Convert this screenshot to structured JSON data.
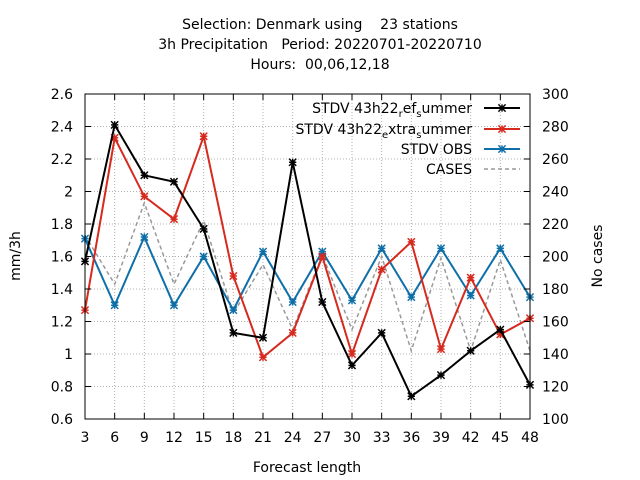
{
  "title_lines": [
    "Selection: Denmark using    23 stations",
    "3h Precipitation   Period: 20220701-20220710",
    "Hours:  00,06,12,18"
  ],
  "colors": {
    "ref": "#000000",
    "extra": "#d62a1e",
    "obs": "#0f6fa8",
    "cases": "#999999"
  },
  "chart_data": {
    "type": "line",
    "xlabel": "Forecast length",
    "ylabel": "mm/3h",
    "y2label": "No cases",
    "x": [
      3,
      6,
      9,
      12,
      15,
      18,
      21,
      24,
      27,
      30,
      33,
      36,
      39,
      42,
      45,
      48
    ],
    "xlim": [
      3,
      48
    ],
    "ylim": [
      0.6,
      2.6
    ],
    "y2lim": [
      100,
      300
    ],
    "yticks": [
      "0.6",
      "0.8",
      "1",
      "1.2",
      "1.4",
      "1.6",
      "1.8",
      "2",
      "2.2",
      "2.4",
      "2.6"
    ],
    "y2ticks": [
      "100",
      "120",
      "140",
      "160",
      "180",
      "200",
      "220",
      "240",
      "260",
      "280",
      "300"
    ],
    "grid": true,
    "legend_position": "top-right",
    "series": [
      {
        "name": "STDV 43h22_ref_summer",
        "legend_parts": [
          "STDV 43h22",
          "r",
          "ef",
          "s",
          "ummer"
        ],
        "axis": "y",
        "style": "solid",
        "marker": "x",
        "color_key": "ref",
        "values": [
          1.57,
          2.41,
          2.1,
          2.06,
          1.77,
          1.13,
          1.1,
          2.18,
          1.32,
          0.93,
          1.13,
          0.74,
          0.87,
          1.02,
          1.15,
          0.81
        ]
      },
      {
        "name": "STDV 43h22_extra_summer",
        "legend_parts": [
          "STDV 43h22",
          "e",
          "xtra",
          "s",
          "ummer"
        ],
        "axis": "y",
        "style": "solid",
        "marker": "x",
        "color_key": "extra",
        "values": [
          1.27,
          2.33,
          1.97,
          1.83,
          2.34,
          1.48,
          0.98,
          1.13,
          1.6,
          1.0,
          1.52,
          1.69,
          1.03,
          1.47,
          1.12,
          1.22
        ]
      },
      {
        "name": "STDV OBS",
        "legend_parts": [
          "STDV OBS"
        ],
        "axis": "y",
        "style": "solid",
        "marker": "x",
        "color_key": "obs",
        "values": [
          1.71,
          1.3,
          1.72,
          1.3,
          1.6,
          1.27,
          1.63,
          1.32,
          1.63,
          1.33,
          1.65,
          1.35,
          1.65,
          1.36,
          1.65,
          1.35
        ]
      },
      {
        "name": "CASES",
        "legend_parts": [
          "CASES"
        ],
        "axis": "y2",
        "style": "dashed",
        "marker": "none",
        "color_key": "cases",
        "values": [
          213,
          183,
          233,
          183,
          222,
          165,
          195,
          155,
          201,
          155,
          200,
          142,
          199,
          142,
          198,
          142
        ]
      }
    ]
  }
}
